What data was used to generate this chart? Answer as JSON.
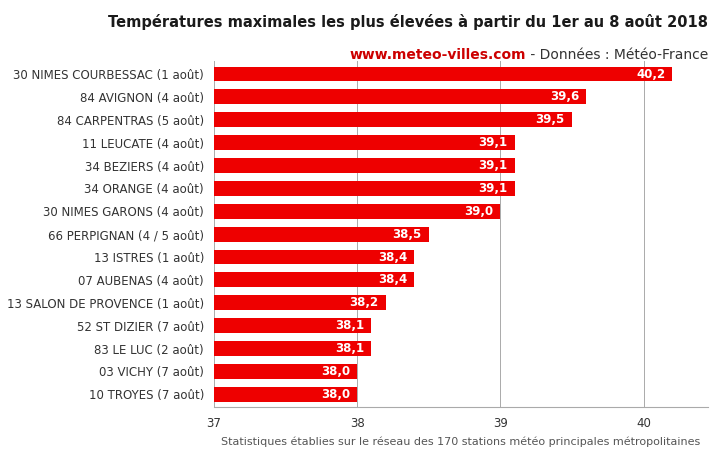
{
  "title_line1": "Températures maximales les plus élevées à partir du 1er au 8 août 2018",
  "title_line2_bold": "www.meteo-villes.com",
  "title_line2_normal": " - Données : Météo-France",
  "xlabel": "Statistiques établies sur le réseau des 170 stations météo principales métropolitaines",
  "categories": [
    "30 NIMES COURBESSAC (1 août)",
    "84 AVIGNON (4 août)",
    "84 CARPENTRAS (5 août)",
    "11 LEUCATE (4 août)",
    "34 BEZIERS (4 août)",
    "34 ORANGE (4 août)",
    "30 NIMES GARONS (4 août)",
    "66 PERPIGNAN (4 / 5 août)",
    "13 ISTRES (1 août)",
    "07 AUBENAS (4 août)",
    "13 SALON DE PROVENCE (1 août)",
    "52 ST DIZIER (7 août)",
    "83 LE LUC (2 août)",
    "03 VICHY (7 août)",
    "10 TROYES (7 août)"
  ],
  "values": [
    40.2,
    39.6,
    39.5,
    39.1,
    39.1,
    39.1,
    39.0,
    38.5,
    38.4,
    38.4,
    38.2,
    38.1,
    38.1,
    38.0,
    38.0
  ],
  "bar_color": "#ee0000",
  "value_color": "#ffffff",
  "xlim_min": 37,
  "xlim_max": 40.45,
  "xticks": [
    37,
    38,
    39,
    40
  ],
  "background_color": "#ffffff",
  "grid_color": "#aaaaaa",
  "title1_fontsize": 10.5,
  "title2_fontsize": 10.0,
  "label_fontsize": 8.5,
  "value_fontsize": 8.5,
  "xlabel_fontsize": 8.0,
  "title1_color": "#1a1a1a",
  "title2_bold_color": "#cc0000",
  "title2_normal_color": "#333333"
}
